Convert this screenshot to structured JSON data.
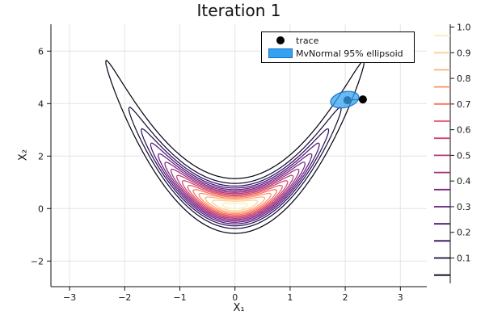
{
  "title": {
    "text": "Iteration 1"
  },
  "axes": {
    "xlabel": "X₁",
    "ylabel": "X₂"
  },
  "legend": {
    "items": [
      {
        "label": "trace",
        "marker": "filled-circle",
        "color": "#000000"
      },
      {
        "label": "MvNormal 95% ellipsoid",
        "marker": "filled-rect",
        "color": "#35a2f0",
        "border": "#1a6fc9"
      }
    ]
  },
  "chart_data": {
    "type": "contour",
    "title": "Iteration 1",
    "xlabel": "X₁",
    "ylabel": "X₂",
    "x_range": [
      -3.34,
      3.48
    ],
    "y_range": [
      -2.97,
      7.03
    ],
    "x_ticks": [
      -3,
      -2,
      -1,
      0,
      1,
      2,
      3
    ],
    "y_ticks": [
      -2,
      0,
      2,
      4,
      6
    ],
    "grid": true,
    "grid_color": "#e4e4e4",
    "axis_color": "#111111",
    "density": {
      "form": "exp(-0.5*((x/sx)^2 + ((y - x^2 - y0)/sy)^2))",
      "sx": 0.9,
      "sy": 0.4,
      "y0": 0.1,
      "max": 1.0
    },
    "levels": [
      0.0333,
      0.1,
      0.1667,
      0.2333,
      0.3,
      0.3667,
      0.4333,
      0.5,
      0.5667,
      0.6333,
      0.7,
      0.7667,
      0.8333,
      0.9,
      0.9667
    ],
    "level_colors": [
      "#070515",
      "#140e36",
      "#2e0f5d",
      "#491375",
      "#641a80",
      "#7f2481",
      "#9a2e7e",
      "#b73779",
      "#d1436e",
      "#e65664",
      "#f7705c",
      "#fc8f67",
      "#feaf79",
      "#fecf92",
      "#fdeeb0"
    ],
    "colorbar": {
      "range": [
        0.0,
        1.0
      ],
      "ticks": [
        0.1,
        0.2,
        0.3,
        0.4,
        0.5,
        0.6,
        0.7,
        0.8,
        0.9,
        1.0
      ]
    },
    "trace_points": [
      {
        "x": 2.04,
        "y": 4.13
      },
      {
        "x": 2.32,
        "y": 4.16
      }
    ],
    "trace_color": "#000000",
    "ellipsoid": {
      "center": [
        1.99,
        4.15
      ],
      "rx": 0.26,
      "ry": 0.3,
      "rotation_deg": -13,
      "fill": "#35a2f0",
      "fill_opacity": 0.75,
      "stroke": "#1a6fc9"
    }
  }
}
